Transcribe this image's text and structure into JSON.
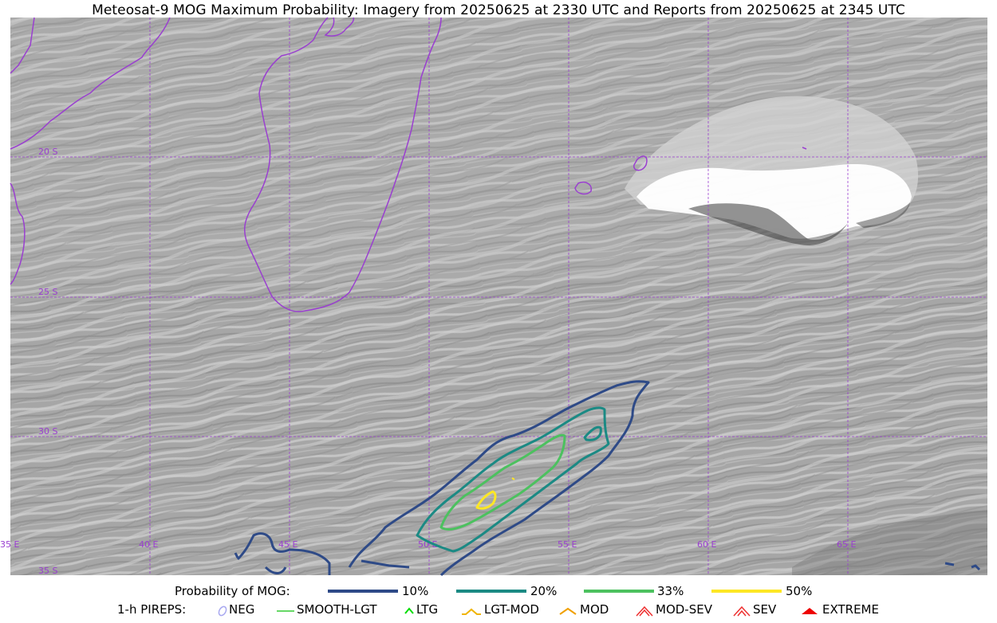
{
  "title": "Meteosat-9 MOG Maximum Probability: Imagery from 20250625 at 2330 UTC and Reports from 20250625 at 2345 UTC",
  "map": {
    "background": "grayscale satellite imagery",
    "coastline_color": "#9a3fd0",
    "grid_color": "#9a3fd0",
    "lat_labels": [
      "20 S",
      "25 S",
      "30 S",
      "35 S"
    ],
    "lon_labels": [
      "35 E",
      "40 E",
      "45 E",
      "50 E",
      "55 E",
      "60 E",
      "65 E"
    ]
  },
  "probability_legend": {
    "label": "Probability of MOG:",
    "levels": [
      {
        "label": "10%",
        "color": "#2e4a87"
      },
      {
        "label": "20%",
        "color": "#1b8a84"
      },
      {
        "label": "33%",
        "color": "#4cc15f"
      },
      {
        "label": "50%",
        "color": "#fde725"
      }
    ]
  },
  "pirep_legend": {
    "label": "1-h PIREPS:",
    "items": [
      {
        "label": "NEG",
        "icon": "neg-icon",
        "color": "#a8a8f0"
      },
      {
        "label": "SMOOTH-LGT",
        "icon": "line-icon",
        "color": "#33cc33"
      },
      {
        "label": "LTG",
        "icon": "caret-icon",
        "color": "#00dd00"
      },
      {
        "label": "LGT-MOD",
        "icon": "caret-bar-icon",
        "color": "#f0b400"
      },
      {
        "label": "MOD",
        "icon": "caret-icon",
        "color": "#f0a000"
      },
      {
        "label": "MOD-SEV",
        "icon": "double-caret-icon",
        "color": "#ee3030"
      },
      {
        "label": "SEV",
        "icon": "double-caret-icon",
        "color": "#ee3030"
      },
      {
        "label": "EXTREME",
        "icon": "filled-caret-icon",
        "color": "#ee0000"
      }
    ]
  }
}
